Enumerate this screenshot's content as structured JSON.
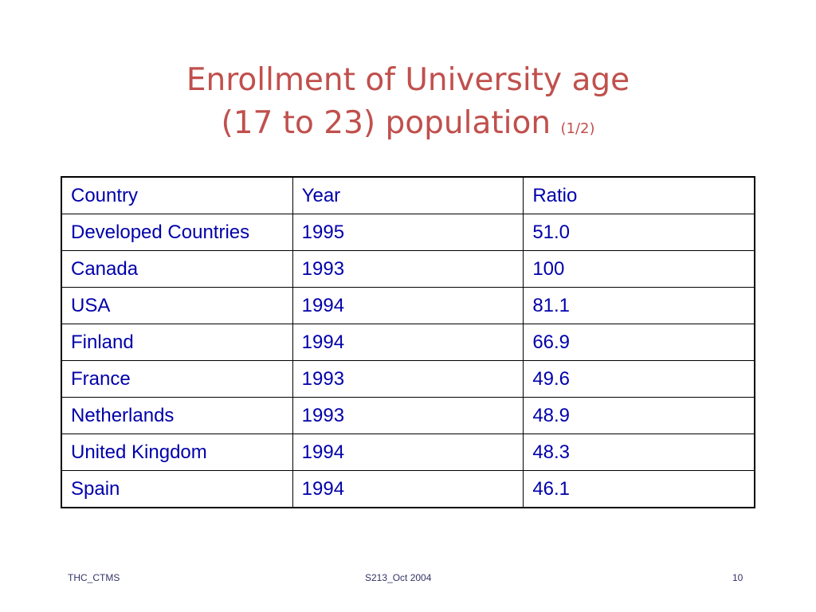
{
  "slide": {
    "title_line1": "Enrollment of  University age",
    "title_line2": "(17 to 23) population ",
    "title_note": "(1/2)"
  },
  "table": {
    "headers": [
      "Country",
      "Year",
      "Ratio"
    ],
    "rows": [
      [
        "Developed Countries",
        "1995",
        "51.0"
      ],
      [
        "Canada",
        "1993",
        "100"
      ],
      [
        "USA",
        "1994",
        "81.1"
      ],
      [
        "Finland",
        "1994",
        "66.9"
      ],
      [
        "France",
        "1993",
        "49.6"
      ],
      [
        "Netherlands",
        "1993",
        "48.9"
      ],
      [
        "United Kingdom",
        "1994",
        "48.3"
      ],
      [
        "Spain",
        "1994",
        "46.1"
      ]
    ]
  },
  "footer": {
    "left": "THC_CTMS",
    "center": "S213_Oct 2004",
    "right": "10"
  },
  "colors": {
    "title": "#c0504d",
    "table_text": "#0000aa",
    "border": "#000000"
  }
}
